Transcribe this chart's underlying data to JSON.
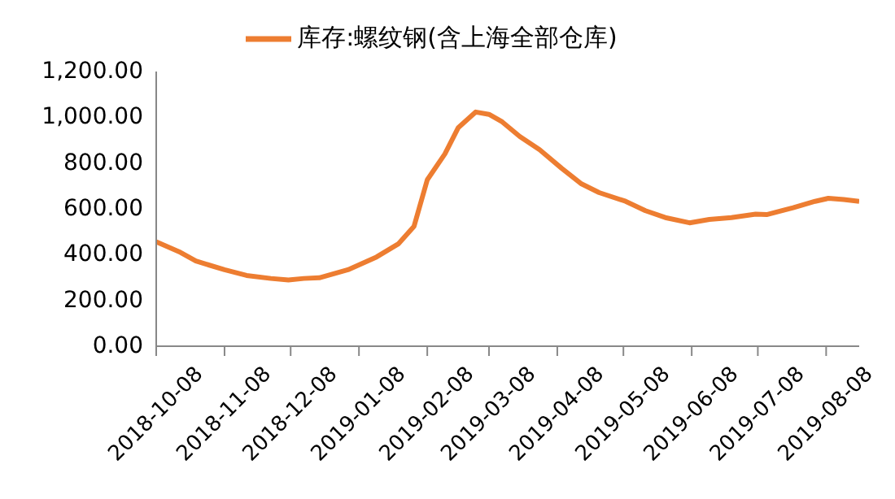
{
  "chart_data": {
    "type": "line",
    "legend": "top",
    "x": [
      "2018-10-08",
      "2018-10-19",
      "2018-10-26",
      "2018-11-08",
      "2018-11-18",
      "2018-11-29",
      "2018-12-07",
      "2018-12-14",
      "2018-12-21",
      "2019-01-03",
      "2019-01-16",
      "2019-01-26",
      "2019-02-02",
      "2019-02-08",
      "2019-02-16",
      "2019-02-22",
      "2019-03-02",
      "2019-03-08",
      "2019-03-14",
      "2019-03-22",
      "2019-03-31",
      "2019-04-10",
      "2019-04-19",
      "2019-04-27",
      "2019-05-09",
      "2019-05-18",
      "2019-05-27",
      "2019-06-07",
      "2019-06-16",
      "2019-06-26",
      "2019-07-07",
      "2019-07-12",
      "2019-07-24",
      "2019-08-03",
      "2019-08-09",
      "2019-08-16",
      "2019-08-23"
    ],
    "series": [
      {
        "name": "库存:螺纹钢(含上海全部仓库)",
        "color": "#ed7d31",
        "values": [
          456,
          410,
          372,
          334,
          309,
          296,
          289,
          296,
          299,
          334,
          390,
          448,
          524,
          727,
          840,
          954,
          1023,
          1013,
          980,
          916,
          858,
          777,
          709,
          671,
          633,
          592,
          562,
          539,
          554,
          562,
          577,
          575,
          605,
          633,
          646,
          641,
          633
        ]
      }
    ],
    "xlim": [
      "2018-10-08",
      "2019-08-23"
    ],
    "xticks": [
      "2018-10-08",
      "2018-11-08",
      "2018-12-08",
      "2019-01-08",
      "2019-02-08",
      "2019-03-08",
      "2019-04-08",
      "2019-05-08",
      "2019-06-08",
      "2019-07-08",
      "2019-08-08"
    ],
    "ylim": [
      0,
      1200
    ],
    "yticks": [
      {
        "value": 0,
        "label": "0.00"
      },
      {
        "value": 200,
        "label": "200.00"
      },
      {
        "value": 400,
        "label": "400.00"
      },
      {
        "value": 600,
        "label": "600.00"
      },
      {
        "value": 800,
        "label": "800.00"
      },
      {
        "value": 1000,
        "label": "1,000.00"
      },
      {
        "value": 1200,
        "label": "1,200.00"
      }
    ],
    "marker": "none",
    "line_style": "solid",
    "grid": false
  }
}
